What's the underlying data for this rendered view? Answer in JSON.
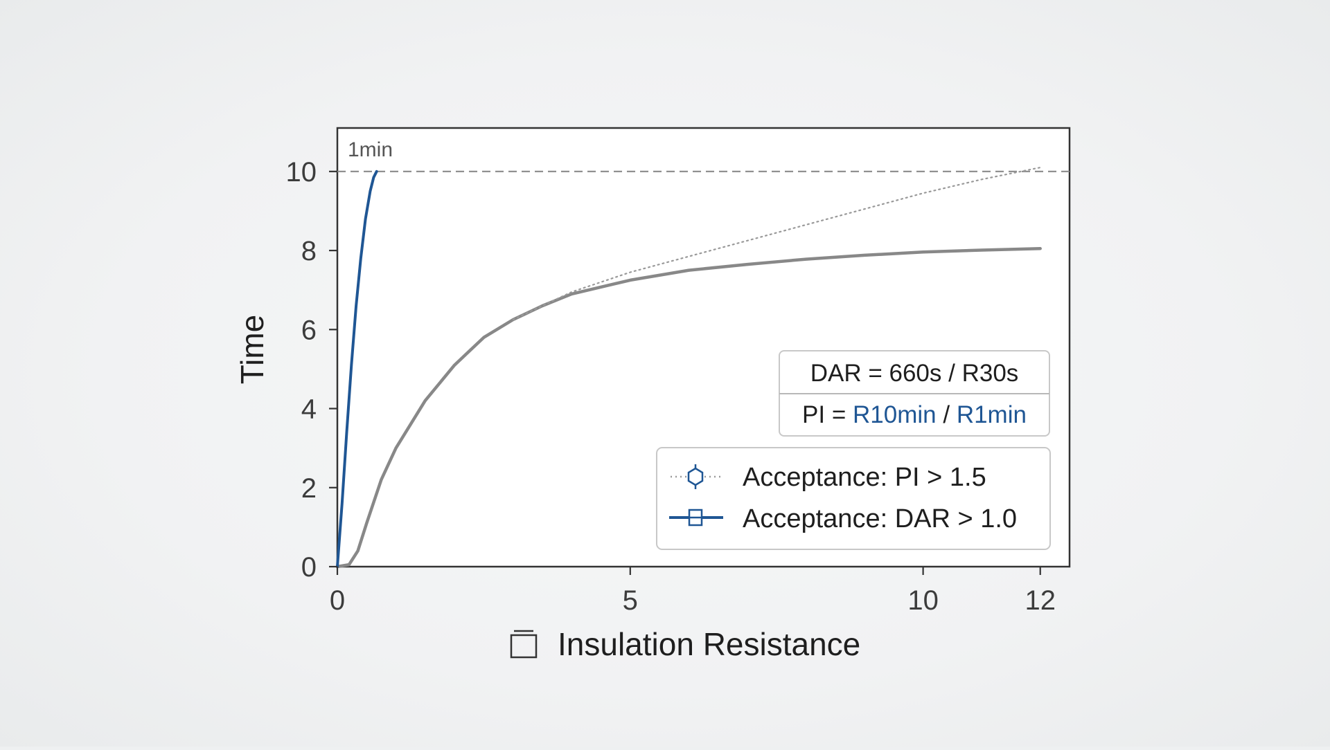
{
  "chart_data": {
    "type": "line",
    "xlabel": "Insulation Resistance",
    "ylabel": "Time",
    "xlim": [
      0,
      12.5
    ],
    "ylim": [
      0,
      11.1
    ],
    "x_ticks": [
      0,
      5,
      10,
      12
    ],
    "y_ticks": [
      0,
      2,
      4,
      6,
      8,
      10
    ],
    "grid": false,
    "legend_placement": "lower-right",
    "annotations": {
      "reference_line": {
        "y": 10,
        "label": "1min"
      },
      "formula_box": {
        "dar_line": "DAR = 660s / R30s",
        "pi_prefix": "PI = ",
        "pi_numerator": "R10min",
        "pi_separator": " / ",
        "pi_denominator": "R1min"
      }
    },
    "series": [
      {
        "name": "Acceptance: PI > 1.5",
        "style": "dotted",
        "color": "#999999",
        "marker": "hexagon-open",
        "x": [
          3.0,
          4.0,
          5.0,
          6.0,
          7.0,
          8.0,
          9.0,
          10.0,
          11.0,
          12.0
        ],
        "y": [
          6.25,
          6.95,
          7.45,
          7.85,
          8.25,
          8.65,
          9.05,
          9.45,
          9.8,
          10.1
        ]
      },
      {
        "name": "Acceptance: DAR > 1.0",
        "style": "solid",
        "color": "#1f5694",
        "marker": "square-open",
        "x": [
          0.0,
          0.08,
          0.16,
          0.24,
          0.32,
          0.4,
          0.48,
          0.56,
          0.62,
          0.67
        ],
        "y": [
          0.0,
          1.6,
          3.4,
          5.1,
          6.6,
          7.8,
          8.8,
          9.5,
          9.85,
          10.0
        ]
      },
      {
        "name": "",
        "style": "solid",
        "color": "#888888",
        "marker": "none",
        "x": [
          0.0,
          0.2,
          0.35,
          0.5,
          0.75,
          1.0,
          1.5,
          2.0,
          2.5,
          3.0,
          3.5,
          4.0,
          5.0,
          6.0,
          7.0,
          8.0,
          9.0,
          10.0,
          11.0,
          12.0
        ],
        "y": [
          0.0,
          0.05,
          0.4,
          1.1,
          2.2,
          3.0,
          4.2,
          5.1,
          5.8,
          6.25,
          6.6,
          6.9,
          7.25,
          7.5,
          7.65,
          7.78,
          7.88,
          7.96,
          8.01,
          8.05
        ]
      }
    ]
  },
  "icons": {
    "xlabel_icon": "clipboard-icon"
  }
}
